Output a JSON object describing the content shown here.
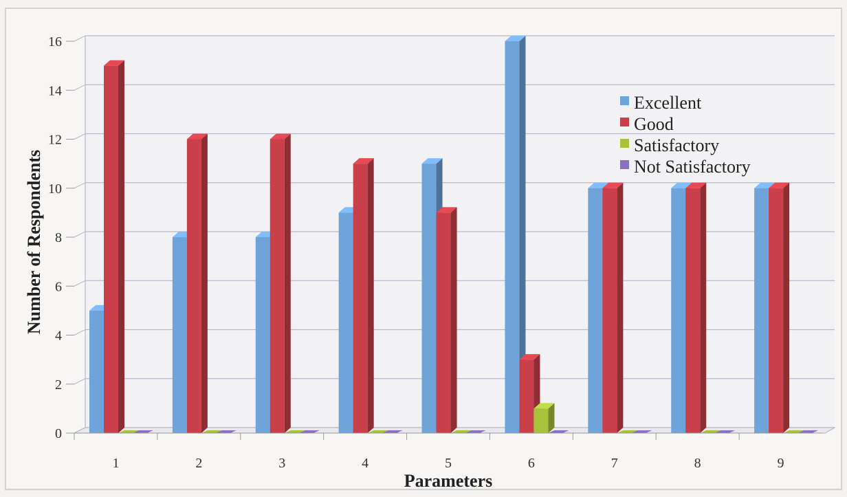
{
  "chart_data": {
    "type": "bar",
    "title": "",
    "xlabel": "Parameters",
    "ylabel": "Number of Respondents",
    "categories": [
      "1",
      "2",
      "3",
      "4",
      "5",
      "6",
      "7",
      "8",
      "9"
    ],
    "ylim": [
      0,
      16
    ],
    "yticks": [
      0,
      2,
      4,
      6,
      8,
      10,
      12,
      14,
      16
    ],
    "grid": true,
    "legend_position": "top-right",
    "series": [
      {
        "name": "Excellent",
        "color": "#6fa4db",
        "values": [
          5,
          8,
          8,
          9,
          11,
          16,
          10,
          10,
          10
        ]
      },
      {
        "name": "Good",
        "color": "#c9404a",
        "values": [
          15,
          12,
          12,
          11,
          9,
          3,
          10,
          10,
          10
        ]
      },
      {
        "name": "Satisfactory",
        "color": "#a8c23c",
        "values": [
          0,
          0,
          0,
          0,
          0,
          1,
          0,
          0,
          0
        ]
      },
      {
        "name": "Not Satisfactory",
        "color": "#8a6fc2",
        "values": [
          0,
          0,
          0,
          0,
          0,
          0,
          0,
          0,
          0
        ]
      }
    ]
  }
}
